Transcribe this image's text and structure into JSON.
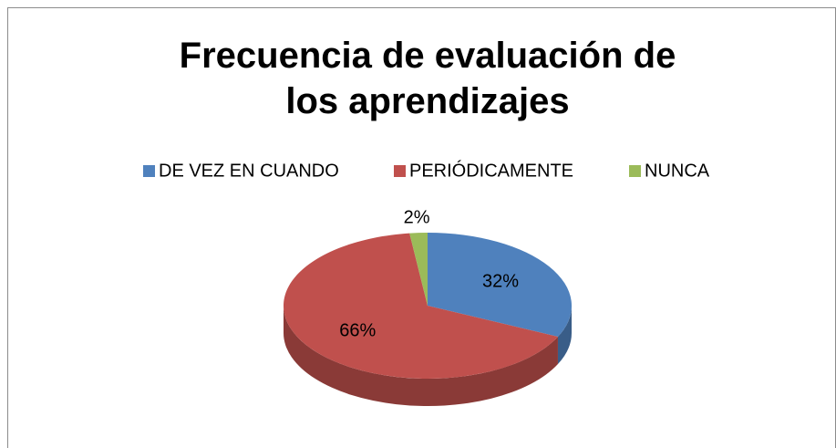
{
  "chart_data": {
    "type": "pie",
    "title": "Frecuencia de evaluación de los aprendizajes",
    "categories": [
      "DE VEZ EN CUANDO",
      "PERIÓDICAMENTE",
      "NUNCA"
    ],
    "values": [
      32,
      66,
      2
    ],
    "value_labels": [
      "32%",
      "66%",
      "2%"
    ],
    "colors": [
      "#4f81bd",
      "#c0504d",
      "#9bbb59"
    ],
    "legend": "top"
  }
}
